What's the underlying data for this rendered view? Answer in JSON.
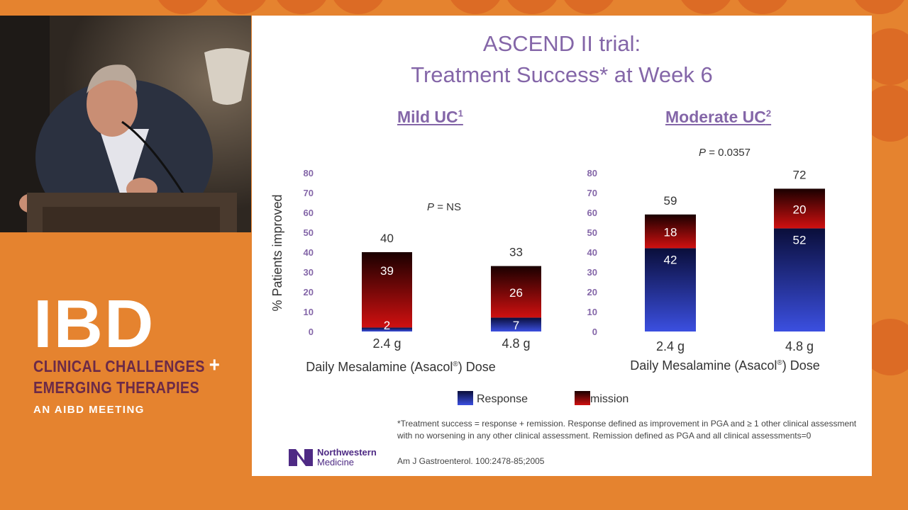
{
  "slide": {
    "title_line1": "ASCEND II trial:",
    "title_line2": "Treatment Success* at Week 6",
    "footnote": "*Treatment success = response + remission. Response defined as improvement in PGA and ≥ 1 other clinical assessment with no worsening in any other clinical assessment.  Remission defined as PGA and all clinical assessments=0",
    "citation": "Am J Gastroenterol.  100:2478-85;2005",
    "logo_name": "Northwestern",
    "logo_sub": "Medicine"
  },
  "brand": {
    "ibd": "IBD",
    "line1": "CLINICAL CHALLENGES",
    "plus": "+",
    "line2": "EMERGING THERAPIES",
    "line3": "AN AIBD MEETING"
  },
  "legend": {
    "response": "Response",
    "remission": "mission"
  },
  "colors": {
    "response": "#3b4fe0",
    "remission": "#d01010",
    "title": "#8466a8",
    "background": "#e5832f"
  },
  "chart_data": [
    {
      "type": "bar",
      "stacked": true,
      "title": "Mild UC",
      "title_superscript": "1",
      "p_value_label": "P",
      "p_value": "= NS",
      "categories": [
        "2.4 g",
        "4.8 g"
      ],
      "series": [
        {
          "name": "Response",
          "values": [
            2,
            7
          ]
        },
        {
          "name": "Remission",
          "values": [
            39,
            26
          ]
        }
      ],
      "totals": [
        40,
        33
      ],
      "xlabel": "Daily Mesalamine (Asacol",
      "xlabel_reg": "®",
      "xlabel_end": ") Dose",
      "ylabel": "% Patients improved",
      "ylim": [
        0,
        80
      ],
      "yticks": [
        0,
        10,
        20,
        30,
        40,
        50,
        60,
        70,
        80
      ]
    },
    {
      "type": "bar",
      "stacked": true,
      "title": "Moderate UC",
      "title_superscript": "2",
      "p_value_label": "P",
      "p_value": "= 0.0357",
      "categories": [
        "2.4 g",
        "4.8 g"
      ],
      "series": [
        {
          "name": "Response",
          "values": [
            42,
            52
          ]
        },
        {
          "name": "Remission",
          "values": [
            18,
            20
          ]
        }
      ],
      "totals": [
        59,
        72
      ],
      "xlabel": "Daily Mesalamine (Asacol",
      "xlabel_reg": "®",
      "xlabel_end": ") Dose",
      "ylim": [
        0,
        80
      ],
      "yticks": [
        0,
        10,
        20,
        30,
        40,
        50,
        60,
        70,
        80
      ]
    }
  ]
}
